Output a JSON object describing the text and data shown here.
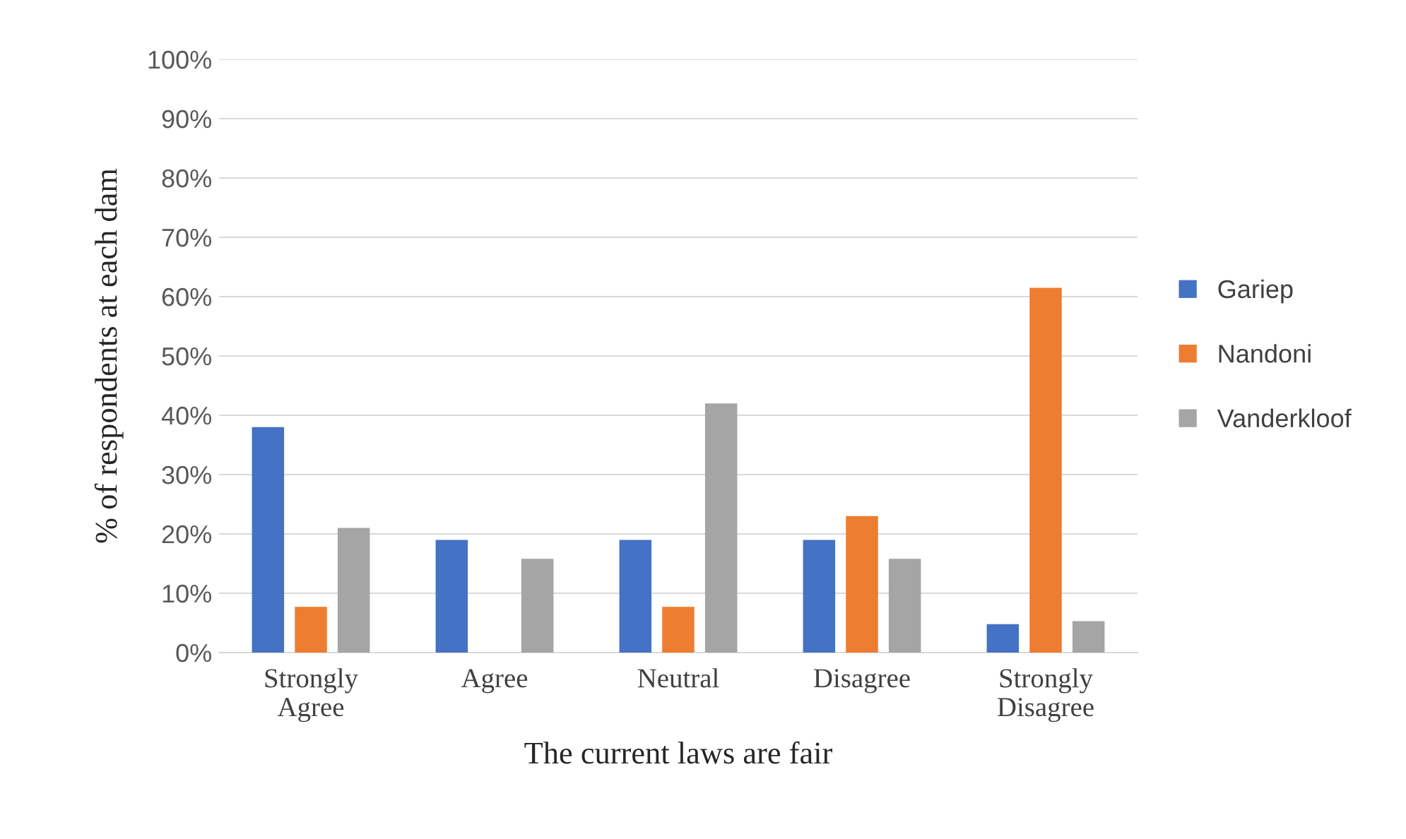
{
  "chart_data": {
    "type": "bar",
    "xlabel": "The current laws are fair",
    "ylabel": "% of respondents at each dam",
    "categories": [
      "Strongly\nAgree",
      "Agree",
      "Neutral",
      "Disagree",
      "Strongly\nDisagree"
    ],
    "series": [
      {
        "name": "Gariep",
        "color": "#4472c4",
        "values": [
          38,
          19,
          19,
          19,
          4.8
        ]
      },
      {
        "name": "Nandoni",
        "color": "#ed7d31",
        "values": [
          7.7,
          0,
          7.7,
          23,
          61.5
        ]
      },
      {
        "name": "Vanderkloof",
        "color": "#a5a5a5",
        "values": [
          21,
          15.8,
          42,
          15.8,
          5.3
        ]
      }
    ],
    "ylim": [
      0,
      100
    ],
    "yticks": [
      {
        "value": 0,
        "label": "0%"
      },
      {
        "value": 10,
        "label": "10%"
      },
      {
        "value": 20,
        "label": "20%"
      },
      {
        "value": 30,
        "label": "30%"
      },
      {
        "value": 40,
        "label": "40%"
      },
      {
        "value": 50,
        "label": "50%"
      },
      {
        "value": 60,
        "label": "60%"
      },
      {
        "value": 70,
        "label": "70%"
      },
      {
        "value": 80,
        "label": "80%"
      },
      {
        "value": 90,
        "label": "90%"
      },
      {
        "value": 100,
        "label": "100%"
      }
    ],
    "grid": "y",
    "legend": "right"
  }
}
